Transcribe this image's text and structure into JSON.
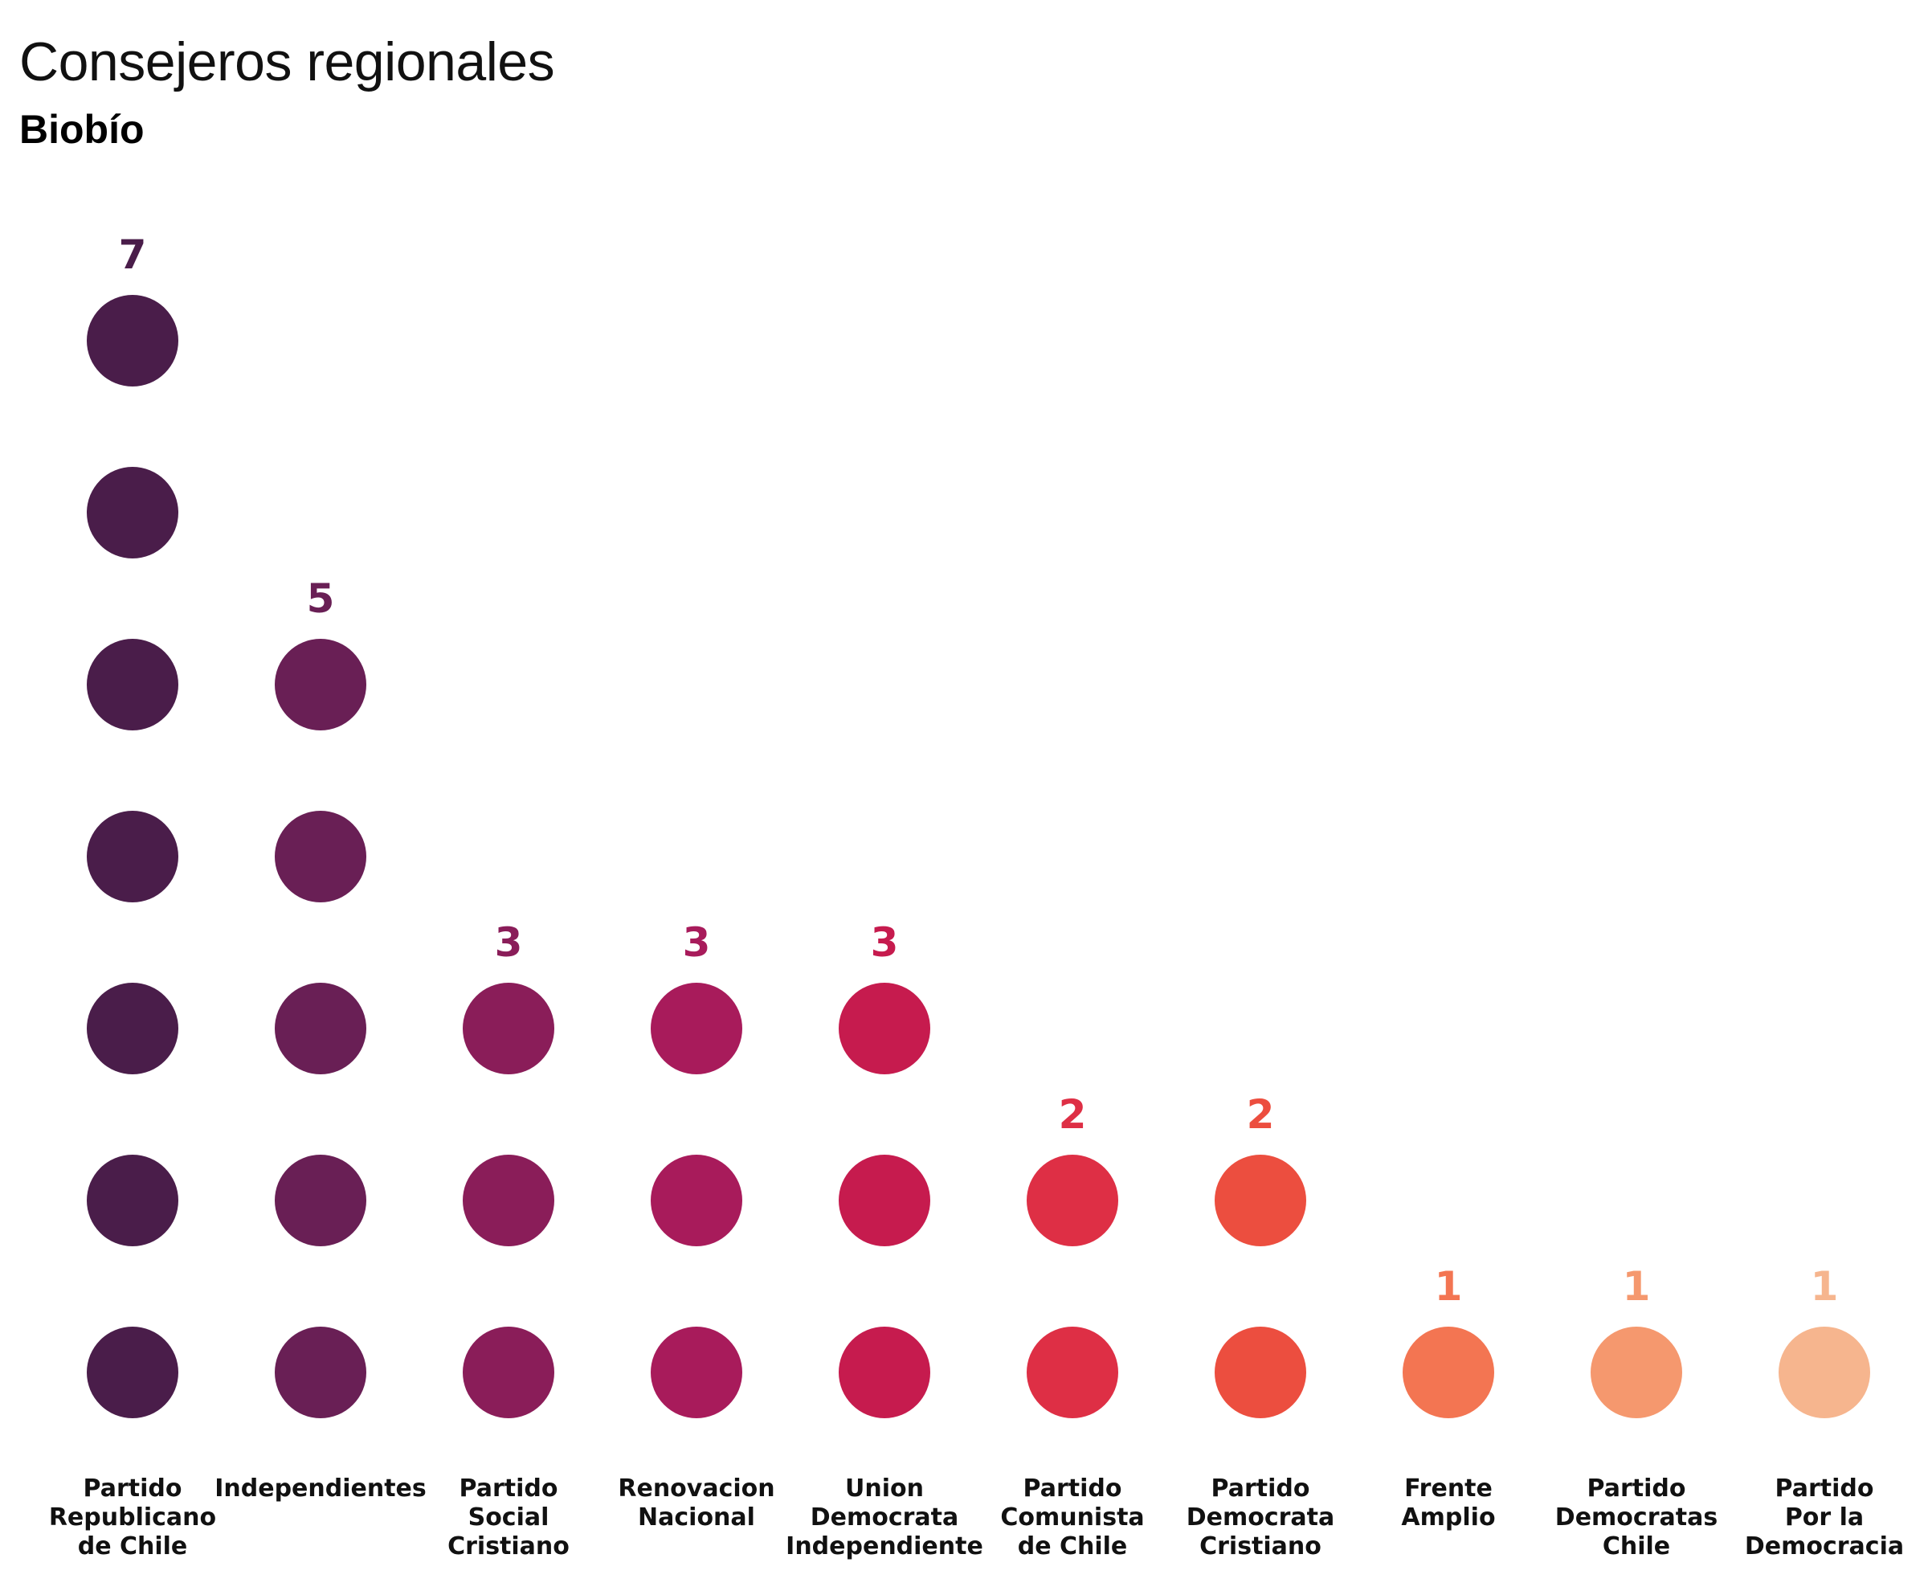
{
  "header": {
    "title": "Consejeros regionales",
    "subtitle": "Biobío"
  },
  "chart_data": {
    "type": "dot",
    "title": "Consejeros regionales",
    "subtitle": "Biobío",
    "categories": [
      "Partido Republicano de Chile",
      "Independientes",
      "Partido Social Cristiano",
      "Renovacion Nacional",
      "Union Democrata Independiente",
      "Partido Comunista de Chile",
      "Partido Democrata Cristiano",
      "Frente Amplio",
      "Partido Democratas Chile",
      "Partido Por la Democracia"
    ],
    "category_lines": [
      [
        "Partido",
        "Republicano",
        "de Chile"
      ],
      [
        "Independientes"
      ],
      [
        "Partido",
        "Social",
        "Cristiano"
      ],
      [
        "Renovacion",
        "Nacional"
      ],
      [
        "Union",
        "Democrata",
        "Independiente"
      ],
      [
        "Partido",
        "Comunista",
        "de Chile"
      ],
      [
        "Partido",
        "Democrata",
        "Cristiano"
      ],
      [
        "Frente",
        "Amplio"
      ],
      [
        "Partido",
        "Democratas",
        "Chile"
      ],
      [
        "Partido",
        "Por la",
        "Democracia"
      ]
    ],
    "values": [
      7,
      5,
      3,
      3,
      3,
      2,
      2,
      1,
      1,
      1
    ],
    "colors": [
      "#4a1d4a",
      "#691f55",
      "#8a1d59",
      "#a81b5b",
      "#c61b4e",
      "#de2f45",
      "#ec4e3f",
      "#f37552",
      "#f5986e",
      "#f6b58e"
    ],
    "xlabel": "",
    "ylabel": ""
  }
}
